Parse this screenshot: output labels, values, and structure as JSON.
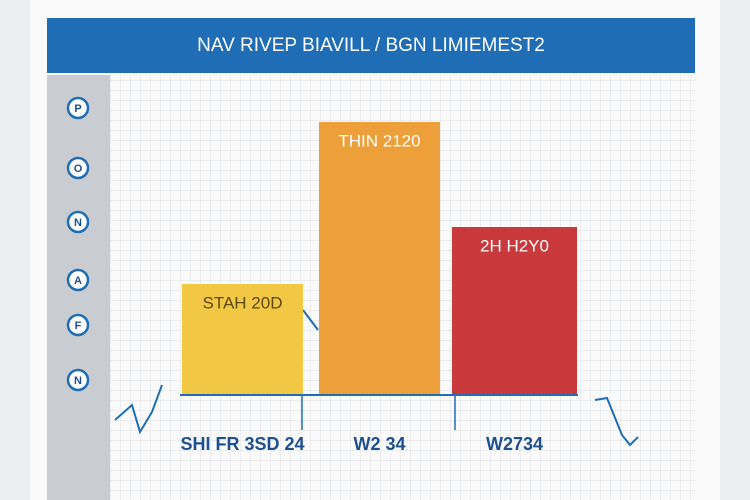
{
  "chart_data": {
    "type": "bar",
    "title": "NAV RIVEP BIAVILL / BGN LIMIEMEST2",
    "categories": [
      "SHI FR 3SD 24",
      "W2 34",
      "W2734"
    ],
    "values": [
      37,
      91,
      56
    ],
    "bar_labels": [
      "STAH 20D",
      "THIN 2120",
      "2H H2Y0"
    ],
    "colors": [
      "#f2c744",
      "#eda03a",
      "#c9383a"
    ],
    "side_labels": [
      "P",
      "O",
      "N",
      "A",
      "F",
      "N"
    ],
    "ylim": [
      0,
      100
    ]
  }
}
